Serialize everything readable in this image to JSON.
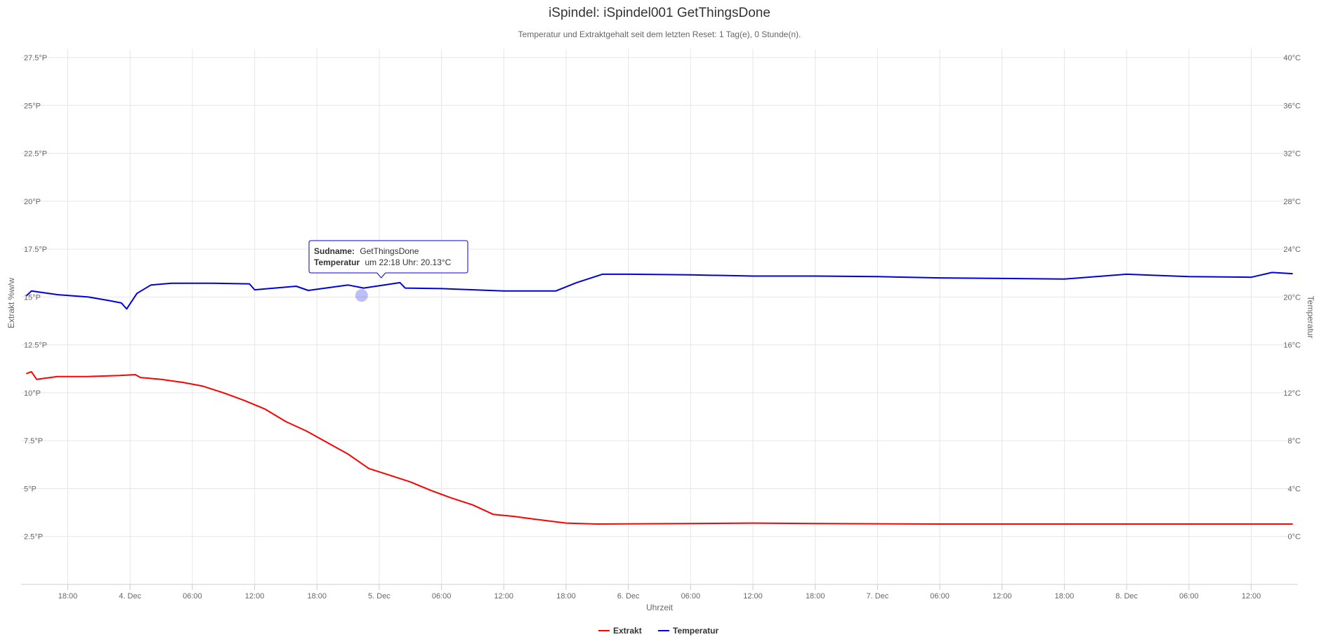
{
  "title": "iSpindel: iSpindel001 GetThingsDone",
  "subtitle": "Temperatur und Extraktgehalt seit dem letzten Reset: 1 Tag(e), 0 Stunde(n).",
  "tooltip": {
    "label1": "Sudname:",
    "value1": "GetThingsDone",
    "label2": "Temperatur",
    "value2": "um 22:18 Uhr: 20.13°C"
  },
  "colors": {
    "extrakt": "#ff0000",
    "temperatur": "#0000dd",
    "grid": "#e6e6e6",
    "tooltip_border": "#0000cc"
  },
  "chart_data": {
    "type": "line",
    "xlabel": "Uhrzeit",
    "xlim": [
      "2017-12-03T13:30",
      "2017-12-08T16:30"
    ],
    "x_ticks": [
      {
        "t": "2017-12-03T18:00",
        "label": "18:00"
      },
      {
        "t": "2017-12-04T00:00",
        "label": "4. Dec"
      },
      {
        "t": "2017-12-04T06:00",
        "label": "06:00"
      },
      {
        "t": "2017-12-04T12:00",
        "label": "12:00"
      },
      {
        "t": "2017-12-04T18:00",
        "label": "18:00"
      },
      {
        "t": "2017-12-05T00:00",
        "label": "5. Dec"
      },
      {
        "t": "2017-12-05T06:00",
        "label": "06:00"
      },
      {
        "t": "2017-12-05T12:00",
        "label": "12:00"
      },
      {
        "t": "2017-12-05T18:00",
        "label": "18:00"
      },
      {
        "t": "2017-12-06T00:00",
        "label": "6. Dec"
      },
      {
        "t": "2017-12-06T06:00",
        "label": "06:00"
      },
      {
        "t": "2017-12-06T12:00",
        "label": "12:00"
      },
      {
        "t": "2017-12-06T18:00",
        "label": "18:00"
      },
      {
        "t": "2017-12-07T00:00",
        "label": "7. Dec"
      },
      {
        "t": "2017-12-07T06:00",
        "label": "06:00"
      },
      {
        "t": "2017-12-07T12:00",
        "label": "12:00"
      },
      {
        "t": "2017-12-07T18:00",
        "label": "18:00"
      },
      {
        "t": "2017-12-08T00:00",
        "label": "8. Dec"
      },
      {
        "t": "2017-12-08T06:00",
        "label": "06:00"
      },
      {
        "t": "2017-12-08T12:00",
        "label": "12:00"
      }
    ],
    "y_left": {
      "label": "Extrakt %w/w",
      "lim": [
        0,
        27.5
      ],
      "ticks": [
        {
          "v": 2.5,
          "label": "2.5°P"
        },
        {
          "v": 5,
          "label": "5°P"
        },
        {
          "v": 7.5,
          "label": "7.5°P"
        },
        {
          "v": 10,
          "label": "10°P"
        },
        {
          "v": 12.5,
          "label": "12.5°P"
        },
        {
          "v": 15,
          "label": "15°P"
        },
        {
          "v": 17.5,
          "label": "17.5°P"
        },
        {
          "v": 20,
          "label": "20°P"
        },
        {
          "v": 22.5,
          "label": "22.5°P"
        },
        {
          "v": 25,
          "label": "25°P"
        },
        {
          "v": 27.5,
          "label": "27.5°P"
        }
      ]
    },
    "y_right": {
      "label": "Temperatur",
      "lim": [
        -4,
        40
      ],
      "ticks": [
        {
          "v": 0,
          "label": "0°C"
        },
        {
          "v": 4,
          "label": "4°C"
        },
        {
          "v": 8,
          "label": "8°C"
        },
        {
          "v": 12,
          "label": "12°C"
        },
        {
          "v": 16,
          "label": "16°C"
        },
        {
          "v": 20,
          "label": "20°C"
        },
        {
          "v": 24,
          "label": "24°C"
        },
        {
          "v": 28,
          "label": "28°C"
        },
        {
          "v": 32,
          "label": "32°C"
        },
        {
          "v": 36,
          "label": "36°C"
        },
        {
          "v": 40,
          "label": "40°C"
        }
      ]
    },
    "grid": true,
    "legend": "bottom-center",
    "series": [
      {
        "name": "Extrakt",
        "axis": "left",
        "points": [
          [
            "2017-12-03T14:00",
            11.0
          ],
          [
            "2017-12-03T14:30",
            11.1
          ],
          [
            "2017-12-03T15:00",
            10.7
          ],
          [
            "2017-12-03T17:00",
            10.85
          ],
          [
            "2017-12-03T20:00",
            10.85
          ],
          [
            "2017-12-03T23:00",
            10.9
          ],
          [
            "2017-12-04T00:30",
            10.95
          ],
          [
            "2017-12-04T01:00",
            10.8
          ],
          [
            "2017-12-04T03:00",
            10.7
          ],
          [
            "2017-12-04T05:00",
            10.55
          ],
          [
            "2017-12-04T07:00",
            10.35
          ],
          [
            "2017-12-04T09:00",
            10.0
          ],
          [
            "2017-12-04T11:00",
            9.6
          ],
          [
            "2017-12-04T13:00",
            9.15
          ],
          [
            "2017-12-04T15:00",
            8.5
          ],
          [
            "2017-12-04T17:00",
            8.0
          ],
          [
            "2017-12-04T19:00",
            7.4
          ],
          [
            "2017-12-04T21:00",
            6.8
          ],
          [
            "2017-12-04T23:00",
            6.05
          ],
          [
            "2017-12-05T01:00",
            5.7
          ],
          [
            "2017-12-05T03:00",
            5.35
          ],
          [
            "2017-12-05T05:00",
            4.9
          ],
          [
            "2017-12-05T07:00",
            4.5
          ],
          [
            "2017-12-05T09:00",
            4.15
          ],
          [
            "2017-12-05T11:00",
            3.65
          ],
          [
            "2017-12-05T13:00",
            3.55
          ],
          [
            "2017-12-05T15:00",
            3.4
          ],
          [
            "2017-12-05T18:00",
            3.2
          ],
          [
            "2017-12-05T21:00",
            3.15
          ],
          [
            "2017-12-06T06:00",
            3.18
          ],
          [
            "2017-12-06T12:00",
            3.2
          ],
          [
            "2017-12-06T18:00",
            3.18
          ],
          [
            "2017-12-07T06:00",
            3.15
          ],
          [
            "2017-12-07T18:00",
            3.15
          ],
          [
            "2017-12-08T06:00",
            3.15
          ],
          [
            "2017-12-08T16:00",
            3.15
          ]
        ]
      },
      {
        "name": "Temperatur",
        "axis": "right",
        "points": [
          [
            "2017-12-03T14:00",
            20.1
          ],
          [
            "2017-12-03T14:30",
            20.5
          ],
          [
            "2017-12-03T17:00",
            20.2
          ],
          [
            "2017-12-03T20:00",
            20.0
          ],
          [
            "2017-12-03T22:00",
            19.7
          ],
          [
            "2017-12-03T23:10",
            19.5
          ],
          [
            "2017-12-03T23:40",
            19.0
          ],
          [
            "2017-12-04T00:40",
            20.3
          ],
          [
            "2017-12-04T02:00",
            21.0
          ],
          [
            "2017-12-04T04:00",
            21.15
          ],
          [
            "2017-12-04T08:00",
            21.15
          ],
          [
            "2017-12-04T11:30",
            21.1
          ],
          [
            "2017-12-04T12:00",
            20.6
          ],
          [
            "2017-12-04T16:00",
            20.9
          ],
          [
            "2017-12-04T17:10",
            20.55
          ],
          [
            "2017-12-04T21:00",
            21.0
          ],
          [
            "2017-12-04T22:30",
            20.75
          ],
          [
            "2017-12-05T02:00",
            21.2
          ],
          [
            "2017-12-05T02:30",
            20.75
          ],
          [
            "2017-12-05T06:00",
            20.7
          ],
          [
            "2017-12-05T12:00",
            20.5
          ],
          [
            "2017-12-05T17:00",
            20.5
          ],
          [
            "2017-12-05T19:00",
            21.2
          ],
          [
            "2017-12-05T21:30",
            21.9
          ],
          [
            "2017-12-06T00:00",
            21.9
          ],
          [
            "2017-12-06T06:00",
            21.85
          ],
          [
            "2017-12-06T12:00",
            21.75
          ],
          [
            "2017-12-06T18:00",
            21.75
          ],
          [
            "2017-12-07T00:00",
            21.7
          ],
          [
            "2017-12-07T06:00",
            21.6
          ],
          [
            "2017-12-07T12:00",
            21.55
          ],
          [
            "2017-12-07T18:00",
            21.5
          ],
          [
            "2017-12-08T00:00",
            21.9
          ],
          [
            "2017-12-08T06:00",
            21.7
          ],
          [
            "2017-12-08T12:00",
            21.65
          ],
          [
            "2017-12-08T14:00",
            22.05
          ],
          [
            "2017-12-08T16:00",
            21.95
          ]
        ]
      }
    ],
    "highlight": {
      "series": "Temperatur",
      "t": "2017-12-04T22:18",
      "y": 20.13
    }
  }
}
